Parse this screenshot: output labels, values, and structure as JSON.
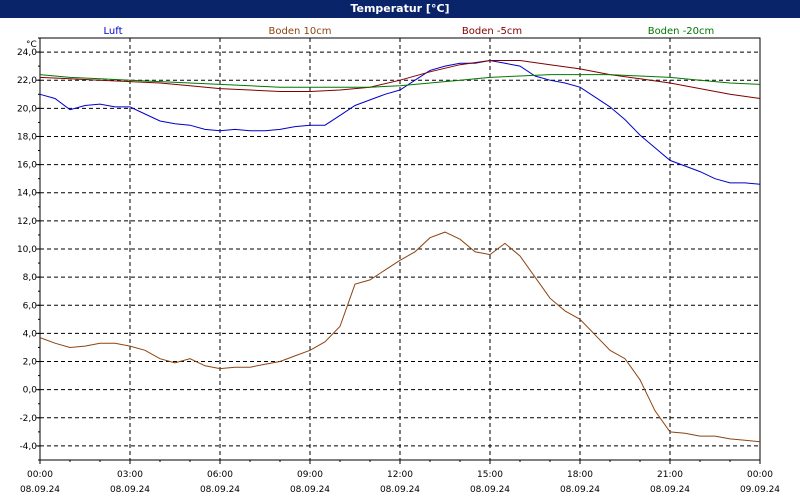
{
  "window": {
    "title": "Temperatur [°C]"
  },
  "chart_data": {
    "type": "line",
    "title": "Temperatur [°C]",
    "ylabel": "°C",
    "xlabel": "",
    "ylim": [
      -5,
      25
    ],
    "xlim": [
      0,
      24
    ],
    "yticks": [
      "24,0",
      "22,0",
      "20,0",
      "18,0",
      "16,0",
      "14,0",
      "12,0",
      "10,0",
      "8,0",
      "6,0",
      "4,0",
      "2,0",
      "0,0",
      "-2,0",
      "-4,0"
    ],
    "xtick_times": [
      "00:00",
      "03:00",
      "06:00",
      "09:00",
      "12:00",
      "15:00",
      "18:00",
      "21:00",
      "00:00"
    ],
    "xtick_dates": [
      "08.09.24",
      "08.09.24",
      "08.09.24",
      "08.09.24",
      "08.09.24",
      "08.09.24",
      "08.09.24",
      "08.09.24",
      "09.09.24"
    ],
    "grid": true,
    "legend_position": "top",
    "series": [
      {
        "name": "Luft",
        "color": "#0000cc",
        "x": [
          0,
          0.5,
          1,
          1.5,
          2,
          2.5,
          3,
          3.5,
          4,
          4.5,
          5,
          5.5,
          6,
          6.5,
          7,
          7.5,
          8,
          8.5,
          9,
          9.5,
          10,
          10.5,
          11,
          11.5,
          12,
          12.5,
          13,
          13.5,
          14,
          14.5,
          15,
          15.5,
          16,
          16.5,
          17,
          17.5,
          18,
          18.5,
          19,
          19.5,
          20,
          20.5,
          21,
          21.5,
          22,
          22.5,
          23,
          23.5,
          24
        ],
        "y": [
          21.0,
          20.7,
          19.9,
          20.2,
          20.3,
          20.1,
          20.1,
          19.6,
          19.1,
          18.9,
          18.8,
          18.5,
          18.4,
          18.5,
          18.4,
          18.4,
          18.5,
          18.7,
          18.8,
          18.8,
          19.5,
          20.2,
          20.6,
          21.0,
          21.3,
          22.0,
          22.7,
          23.0,
          23.2,
          23.2,
          23.4,
          23.2,
          23.0,
          22.3,
          22.0,
          21.8,
          21.5,
          20.8,
          20.1,
          19.2,
          18.1,
          17.2,
          16.3,
          15.9,
          15.5,
          15.0,
          14.7,
          14.7,
          14.6
        ]
      },
      {
        "name": "Boden 10cm",
        "color": "#8b4513",
        "x": [
          0,
          0.5,
          1,
          1.5,
          2,
          2.5,
          3,
          3.5,
          4,
          4.5,
          5,
          5.5,
          6,
          6.5,
          7,
          7.5,
          8,
          8.5,
          9,
          9.5,
          10,
          10.5,
          11,
          11.5,
          12,
          12.5,
          13,
          13.5,
          14,
          14.5,
          15,
          15.5,
          16,
          16.5,
          17,
          17.5,
          18,
          18.5,
          19,
          19.5,
          20,
          20.5,
          21,
          21.5,
          22,
          22.5,
          23,
          23.5,
          24
        ],
        "y": [
          3.7,
          3.3,
          3.0,
          3.1,
          3.3,
          3.3,
          3.1,
          2.8,
          2.2,
          1.9,
          2.2,
          1.7,
          1.5,
          1.6,
          1.6,
          1.8,
          2.0,
          2.4,
          2.8,
          3.4,
          4.5,
          7.5,
          7.8,
          8.5,
          9.2,
          9.8,
          10.8,
          11.2,
          10.7,
          9.8,
          9.6,
          10.4,
          9.5,
          8.0,
          6.5,
          5.6,
          5.0,
          3.9,
          2.8,
          2.2,
          0.7,
          -1.5,
          -3.0,
          -3.1,
          -3.3,
          -3.3,
          -3.5,
          -3.6,
          -3.7
        ]
      },
      {
        "name": "Boden -5cm",
        "color": "#800000",
        "x": [
          0,
          1,
          2,
          3,
          4,
          5,
          6,
          7,
          8,
          9,
          10,
          11,
          12,
          13,
          14,
          15,
          16,
          17,
          18,
          19,
          20,
          21,
          22,
          23,
          24
        ],
        "y": [
          22.2,
          22.1,
          22.0,
          21.9,
          21.8,
          21.6,
          21.4,
          21.3,
          21.2,
          21.2,
          21.3,
          21.5,
          22.0,
          22.6,
          23.1,
          23.4,
          23.4,
          23.1,
          22.8,
          22.4,
          22.1,
          21.8,
          21.4,
          21.0,
          20.7
        ]
      },
      {
        "name": "Boden -20cm",
        "color": "#007700",
        "x": [
          0,
          1,
          2,
          3,
          4,
          5,
          6,
          7,
          8,
          9,
          10,
          11,
          12,
          13,
          14,
          15,
          16,
          17,
          18,
          19,
          20,
          21,
          22,
          23,
          24
        ],
        "y": [
          22.4,
          22.2,
          22.1,
          22.0,
          21.9,
          21.8,
          21.7,
          21.6,
          21.5,
          21.5,
          21.5,
          21.5,
          21.6,
          21.8,
          22.0,
          22.2,
          22.3,
          22.4,
          22.4,
          22.4,
          22.3,
          22.2,
          22.0,
          21.8,
          21.7
        ]
      }
    ]
  }
}
